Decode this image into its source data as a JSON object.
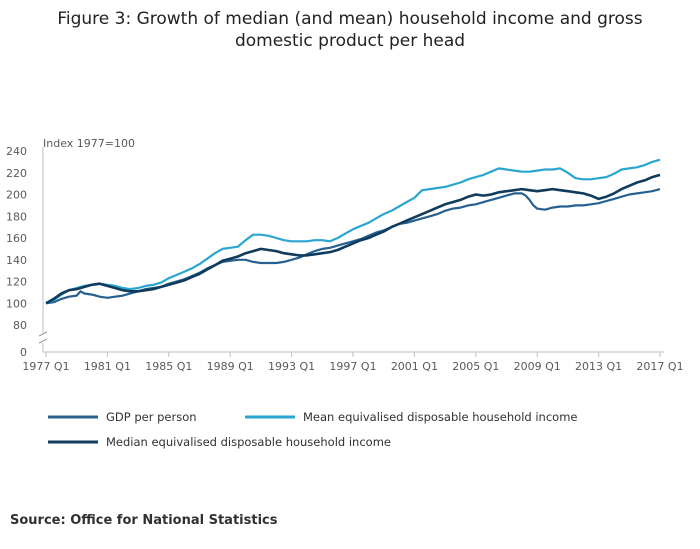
{
  "title_lines": [
    "Figure 3: Growth of median (and mean) household income and gross",
    "domestic product per head"
  ],
  "source": "Source: Office for National Statistics",
  "chart_data": {
    "type": "line",
    "title": "Figure 3: Growth of median (and mean) household income and gross domestic product per head",
    "unit_label": "Index 1977=100",
    "xlabel": "",
    "ylabel": "",
    "x_range": [
      1977,
      2017
    ],
    "x_ticks": [
      {
        "value": 1977,
        "label": "1977 Q1"
      },
      {
        "value": 1981,
        "label": "1981 Q1"
      },
      {
        "value": 1985,
        "label": "1985 Q1"
      },
      {
        "value": 1989,
        "label": "1989 Q1"
      },
      {
        "value": 1993,
        "label": "1993 Q1"
      },
      {
        "value": 1997,
        "label": "1997 Q1"
      },
      {
        "value": 2001,
        "label": "2001 Q1"
      },
      {
        "value": 2005,
        "label": "2005 Q1"
      },
      {
        "value": 2009,
        "label": "2009 Q1"
      },
      {
        "value": 2013,
        "label": "2013 Q1"
      },
      {
        "value": 2017,
        "label": "2017 Q1"
      }
    ],
    "y_axis": {
      "break": true,
      "ticks": [
        0,
        80,
        100,
        120,
        140,
        160,
        180,
        200,
        220,
        240
      ],
      "upper_range": [
        80,
        240
      ]
    },
    "grid": false,
    "legend_position": "bottom",
    "series": [
      {
        "name": "GDP per person",
        "color": "#27608f",
        "points": [
          [
            1977,
            100
          ],
          [
            1977.5,
            101
          ],
          [
            1978,
            104
          ],
          [
            1978.5,
            106
          ],
          [
            1979,
            107
          ],
          [
            1979.25,
            111
          ],
          [
            1979.5,
            109
          ],
          [
            1980,
            108
          ],
          [
            1980.5,
            106
          ],
          [
            1981,
            105
          ],
          [
            1981.5,
            106
          ],
          [
            1982,
            107
          ],
          [
            1982.5,
            109
          ],
          [
            1983,
            111
          ],
          [
            1983.5,
            113
          ],
          [
            1984,
            114
          ],
          [
            1984.5,
            115
          ],
          [
            1985,
            118
          ],
          [
            1985.5,
            120
          ],
          [
            1986,
            122
          ],
          [
            1986.5,
            125
          ],
          [
            1987,
            128
          ],
          [
            1987.5,
            132
          ],
          [
            1988,
            135
          ],
          [
            1988.5,
            138
          ],
          [
            1989,
            139
          ],
          [
            1989.5,
            140
          ],
          [
            1990,
            140
          ],
          [
            1990.5,
            138
          ],
          [
            1991,
            137
          ],
          [
            1991.5,
            137
          ],
          [
            1992,
            137
          ],
          [
            1992.5,
            138
          ],
          [
            1993,
            140
          ],
          [
            1993.5,
            142
          ],
          [
            1994,
            145
          ],
          [
            1994.5,
            148
          ],
          [
            1995,
            150
          ],
          [
            1995.5,
            151
          ],
          [
            1996,
            153
          ],
          [
            1996.5,
            155
          ],
          [
            1997,
            157
          ],
          [
            1997.5,
            159
          ],
          [
            1998,
            162
          ],
          [
            1998.5,
            165
          ],
          [
            1999,
            167
          ],
          [
            1999.5,
            170
          ],
          [
            2000,
            173
          ],
          [
            2000.5,
            174
          ],
          [
            2001,
            176
          ],
          [
            2001.5,
            178
          ],
          [
            2002,
            180
          ],
          [
            2002.5,
            182
          ],
          [
            2003,
            185
          ],
          [
            2003.5,
            187
          ],
          [
            2004,
            188
          ],
          [
            2004.5,
            190
          ],
          [
            2005,
            191
          ],
          [
            2005.5,
            193
          ],
          [
            2006,
            195
          ],
          [
            2006.5,
            197
          ],
          [
            2007,
            199
          ],
          [
            2007.5,
            201
          ],
          [
            2008,
            201
          ],
          [
            2008.25,
            199
          ],
          [
            2008.5,
            195
          ],
          [
            2008.75,
            190
          ],
          [
            2009,
            187
          ],
          [
            2009.5,
            186
          ],
          [
            2010,
            188
          ],
          [
            2010.5,
            189
          ],
          [
            2011,
            189
          ],
          [
            2011.5,
            190
          ],
          [
            2012,
            190
          ],
          [
            2012.5,
            191
          ],
          [
            2013,
            192
          ],
          [
            2013.5,
            194
          ],
          [
            2014,
            196
          ],
          [
            2014.5,
            198
          ],
          [
            2015,
            200
          ],
          [
            2015.5,
            201
          ],
          [
            2016,
            202
          ],
          [
            2016.5,
            203
          ],
          [
            2017,
            205
          ]
        ]
      },
      {
        "name": "Mean equivalised disposable household income",
        "color": "#2aa5cf",
        "points": [
          [
            1977,
            100
          ],
          [
            1977.5,
            103
          ],
          [
            1978,
            108
          ],
          [
            1978.5,
            112
          ],
          [
            1979,
            114
          ],
          [
            1979.5,
            116
          ],
          [
            1980,
            117
          ],
          [
            1980.5,
            118
          ],
          [
            1981,
            117
          ],
          [
            1981.5,
            116
          ],
          [
            1982,
            114
          ],
          [
            1982.5,
            113
          ],
          [
            1983,
            114
          ],
          [
            1983.5,
            116
          ],
          [
            1984,
            117
          ],
          [
            1984.5,
            119
          ],
          [
            1985,
            123
          ],
          [
            1985.5,
            126
          ],
          [
            1986,
            129
          ],
          [
            1986.5,
            132
          ],
          [
            1987,
            136
          ],
          [
            1987.5,
            141
          ],
          [
            1988,
            146
          ],
          [
            1988.5,
            150
          ],
          [
            1989,
            151
          ],
          [
            1989.5,
            152
          ],
          [
            1990,
            158
          ],
          [
            1990.5,
            163
          ],
          [
            1991,
            163
          ],
          [
            1991.5,
            162
          ],
          [
            1992,
            160
          ],
          [
            1992.5,
            158
          ],
          [
            1993,
            157
          ],
          [
            1993.5,
            157
          ],
          [
            1994,
            157
          ],
          [
            1994.5,
            158
          ],
          [
            1995,
            158
          ],
          [
            1995.5,
            157
          ],
          [
            1996,
            160
          ],
          [
            1996.5,
            164
          ],
          [
            1997,
            168
          ],
          [
            1997.5,
            171
          ],
          [
            1998,
            174
          ],
          [
            1998.5,
            178
          ],
          [
            1999,
            182
          ],
          [
            1999.5,
            185
          ],
          [
            2000,
            189
          ],
          [
            2000.5,
            193
          ],
          [
            2001,
            197
          ],
          [
            2001.5,
            204
          ],
          [
            2002,
            205
          ],
          [
            2002.5,
            206
          ],
          [
            2003,
            207
          ],
          [
            2003.5,
            209
          ],
          [
            2004,
            211
          ],
          [
            2004.5,
            214
          ],
          [
            2005,
            216
          ],
          [
            2005.5,
            218
          ],
          [
            2006,
            221
          ],
          [
            2006.5,
            224
          ],
          [
            2007,
            223
          ],
          [
            2007.5,
            222
          ],
          [
            2008,
            221
          ],
          [
            2008.5,
            221
          ],
          [
            2009,
            222
          ],
          [
            2009.5,
            223
          ],
          [
            2010,
            223
          ],
          [
            2010.5,
            224
          ],
          [
            2011,
            220
          ],
          [
            2011.5,
            215
          ],
          [
            2012,
            214
          ],
          [
            2012.5,
            214
          ],
          [
            2013,
            215
          ],
          [
            2013.5,
            216
          ],
          [
            2014,
            219
          ],
          [
            2014.5,
            223
          ],
          [
            2015,
            224
          ],
          [
            2015.5,
            225
          ],
          [
            2016,
            227
          ],
          [
            2016.5,
            230
          ],
          [
            2017,
            232
          ]
        ]
      },
      {
        "name": "Median equivalised disposable household income",
        "color": "#0f3b5c",
        "points": [
          [
            1977,
            100
          ],
          [
            1977.5,
            104
          ],
          [
            1978,
            109
          ],
          [
            1978.5,
            112
          ],
          [
            1979,
            113
          ],
          [
            1979.5,
            115
          ],
          [
            1980,
            117
          ],
          [
            1980.5,
            118
          ],
          [
            1981,
            116
          ],
          [
            1981.5,
            114
          ],
          [
            1982,
            112
          ],
          [
            1982.5,
            111
          ],
          [
            1983,
            111
          ],
          [
            1983.5,
            112
          ],
          [
            1984,
            113
          ],
          [
            1984.5,
            115
          ],
          [
            1985,
            117
          ],
          [
            1985.5,
            119
          ],
          [
            1986,
            121
          ],
          [
            1986.5,
            124
          ],
          [
            1987,
            127
          ],
          [
            1987.5,
            131
          ],
          [
            1988,
            135
          ],
          [
            1988.5,
            139
          ],
          [
            1989,
            141
          ],
          [
            1989.5,
            143
          ],
          [
            1990,
            146
          ],
          [
            1990.5,
            148
          ],
          [
            1991,
            150
          ],
          [
            1991.5,
            149
          ],
          [
            1992,
            148
          ],
          [
            1992.5,
            146
          ],
          [
            1993,
            145
          ],
          [
            1993.5,
            144
          ],
          [
            1994,
            144
          ],
          [
            1994.5,
            145
          ],
          [
            1995,
            146
          ],
          [
            1995.5,
            147
          ],
          [
            1996,
            149
          ],
          [
            1996.5,
            152
          ],
          [
            1997,
            155
          ],
          [
            1997.5,
            158
          ],
          [
            1998,
            160
          ],
          [
            1998.5,
            163
          ],
          [
            1999,
            166
          ],
          [
            1999.5,
            170
          ],
          [
            2000,
            173
          ],
          [
            2000.5,
            176
          ],
          [
            2001,
            179
          ],
          [
            2001.5,
            182
          ],
          [
            2002,
            185
          ],
          [
            2002.5,
            188
          ],
          [
            2003,
            191
          ],
          [
            2003.5,
            193
          ],
          [
            2004,
            195
          ],
          [
            2004.5,
            198
          ],
          [
            2005,
            200
          ],
          [
            2005.5,
            199
          ],
          [
            2006,
            200
          ],
          [
            2006.5,
            202
          ],
          [
            2007,
            203
          ],
          [
            2007.5,
            204
          ],
          [
            2008,
            205
          ],
          [
            2008.5,
            204
          ],
          [
            2009,
            203
          ],
          [
            2009.5,
            204
          ],
          [
            2010,
            205
          ],
          [
            2010.5,
            204
          ],
          [
            2011,
            203
          ],
          [
            2011.5,
            202
          ],
          [
            2012,
            201
          ],
          [
            2012.5,
            199
          ],
          [
            2013,
            196
          ],
          [
            2013.5,
            198
          ],
          [
            2014,
            201
          ],
          [
            2014.5,
            205
          ],
          [
            2015,
            208
          ],
          [
            2015.5,
            211
          ],
          [
            2016,
            213
          ],
          [
            2016.5,
            216
          ],
          [
            2017,
            218
          ]
        ]
      }
    ]
  }
}
